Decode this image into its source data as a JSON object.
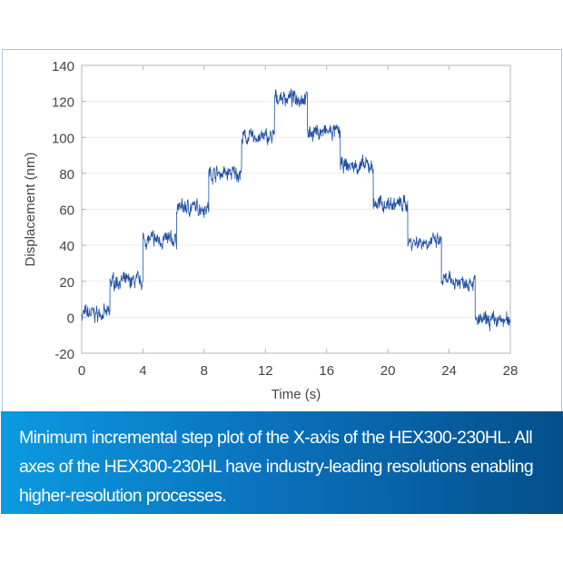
{
  "chart_data": {
    "type": "line",
    "xlabel": "Time (s)",
    "ylabel": "Displacement (nm)",
    "xlim": [
      0,
      28
    ],
    "ylim": [
      -20,
      140
    ],
    "xticks": [
      0,
      4,
      8,
      12,
      16,
      20,
      24,
      28
    ],
    "yticks": [
      -20,
      0,
      20,
      40,
      60,
      80,
      100,
      120,
      140
    ],
    "grid": "horizontal",
    "series": [
      {
        "color": "#1f4fa3",
        "steps": [
          {
            "t_start": 0,
            "t_end": 1.85,
            "level": 2
          },
          {
            "t_start": 1.85,
            "t_end": 4.0,
            "level": 20
          },
          {
            "t_start": 4.0,
            "t_end": 6.2,
            "level": 43
          },
          {
            "t_start": 6.2,
            "t_end": 8.3,
            "level": 61
          },
          {
            "t_start": 8.3,
            "t_end": 10.45,
            "level": 80
          },
          {
            "t_start": 10.45,
            "t_end": 12.6,
            "level": 100
          },
          {
            "t_start": 12.6,
            "t_end": 14.75,
            "level": 122
          },
          {
            "t_start": 14.75,
            "t_end": 16.9,
            "level": 103
          },
          {
            "t_start": 16.9,
            "t_end": 19.05,
            "level": 84
          },
          {
            "t_start": 19.05,
            "t_end": 21.3,
            "level": 63
          },
          {
            "t_start": 21.3,
            "t_end": 23.5,
            "level": 42
          },
          {
            "t_start": 23.5,
            "t_end": 25.7,
            "level": 20
          },
          {
            "t_start": 25.7,
            "t_end": 28,
            "level": -2
          }
        ],
        "noise_amplitude_nm": 5
      }
    ]
  },
  "caption": "Minimum incremental step plot of the X-axis of the HEX300-230HL. All axes of the HEX300-230HL have industry-leading resolutions enabling higher-resolution processes."
}
